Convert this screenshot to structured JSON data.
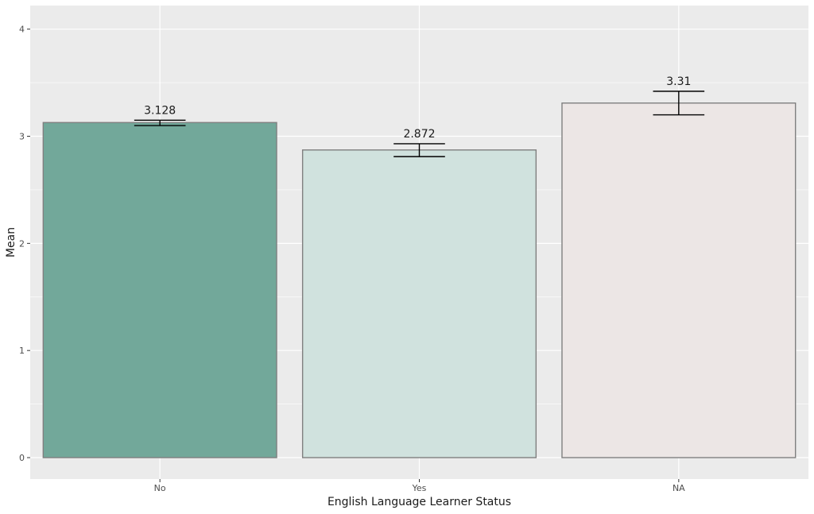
{
  "chart_data": {
    "type": "bar",
    "categories": [
      "No",
      "Yes",
      "NA"
    ],
    "values": [
      3.128,
      2.872,
      3.31
    ],
    "value_labels": [
      "3.128",
      "2.872",
      "3.31"
    ],
    "error_bars": [
      {
        "low": 3.1,
        "high": 3.15
      },
      {
        "low": 2.81,
        "high": 2.93
      },
      {
        "low": 3.2,
        "high": 3.42
      }
    ],
    "bar_colors": [
      "#72a89a",
      "#d0e2de",
      "#ece6e5"
    ],
    "bar_outline": "#7f7f7f",
    "panel_background": "#ebebeb",
    "grid": true,
    "grid_color": "#ffffff",
    "xlabel": "English Language Learner Status",
    "ylabel": "Mean",
    "ylim": [
      -0.2,
      4.22
    ],
    "yticks": [
      0,
      1,
      2,
      3,
      4
    ],
    "ytick_labels": [
      "0",
      "1",
      "2",
      "3",
      "4"
    ]
  }
}
